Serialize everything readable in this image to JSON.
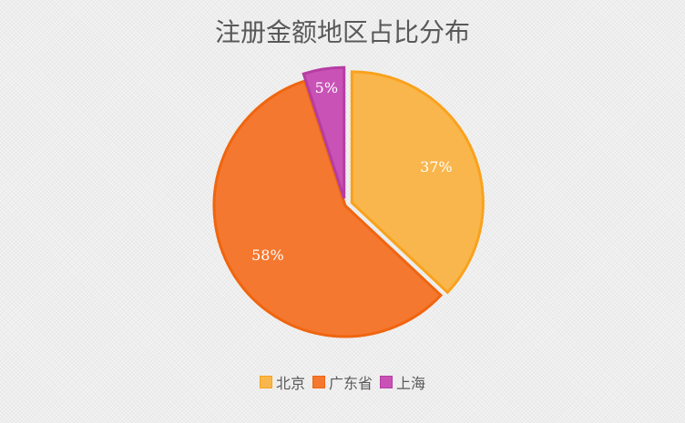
{
  "chart_data": {
    "type": "pie",
    "title": "注册金额地区占比分布",
    "categories": [
      "北京",
      "广东省",
      "上海"
    ],
    "values": [
      37,
      58,
      5
    ],
    "data_labels": [
      "37%",
      "58%",
      "5%"
    ],
    "colors": [
      "#F9B64C",
      "#F4782F",
      "#C952B6"
    ],
    "stroke_colors": [
      "#F9A21C",
      "#F0650F",
      "#B53DA3"
    ],
    "exploded": [
      true,
      false,
      true
    ],
    "legend": "bottom"
  }
}
